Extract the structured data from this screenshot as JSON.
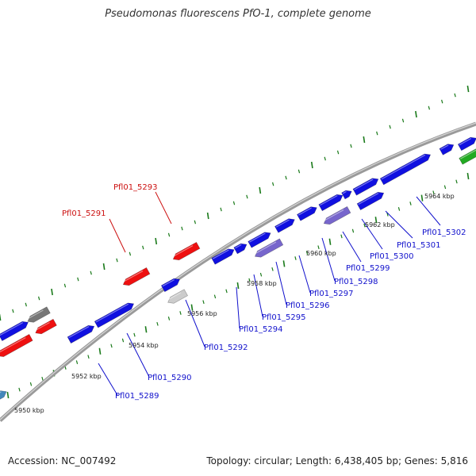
{
  "header": {
    "title": "Pseudomonas fluorescens PfO-1, complete genome"
  },
  "footer": {
    "accession": "Accession: NC_007492",
    "summary": "Topology: circular; Length: 6,438,405 bp; Genes: 5,816"
  },
  "colors": {
    "forward_gene": "#1010e0",
    "reverse_gene": "#ee1010",
    "purple_gene": "#7766cc",
    "green_gene": "#22aa22",
    "gray_gene": "#777777",
    "light_gene": "#cccccc",
    "teal_gene": "#4488bb",
    "backbone": "#9a9a9a",
    "ticks": "#1a7a1a",
    "label_blue": "#1010cc",
    "label_red": "#cc1010"
  },
  "scale_labels": [
    "5950 kbp",
    "5952 kbp",
    "5954 kbp",
    "5956 kbp",
    "5958 kbp",
    "5960 kbp",
    "5962 kbp",
    "5964 kbp"
  ],
  "gene_labels": [
    {
      "name": "Pfl01_5289",
      "strand": "forward"
    },
    {
      "name": "Pfl01_5290",
      "strand": "forward"
    },
    {
      "name": "Pfl01_5291",
      "strand": "reverse"
    },
    {
      "name": "Pfl01_5292",
      "strand": "forward"
    },
    {
      "name": "Pfl01_5293",
      "strand": "reverse"
    },
    {
      "name": "Pfl01_5294",
      "strand": "forward"
    },
    {
      "name": "Pfl01_5295",
      "strand": "forward"
    },
    {
      "name": "Pfl01_5296",
      "strand": "forward"
    },
    {
      "name": "Pfl01_5297",
      "strand": "forward"
    },
    {
      "name": "Pfl01_5298",
      "strand": "forward"
    },
    {
      "name": "Pfl01_5299",
      "strand": "forward"
    },
    {
      "name": "Pfl01_5300",
      "strand": "forward"
    },
    {
      "name": "Pfl01_5301",
      "strand": "forward"
    },
    {
      "name": "Pfl01_5302",
      "strand": "forward"
    }
  ]
}
